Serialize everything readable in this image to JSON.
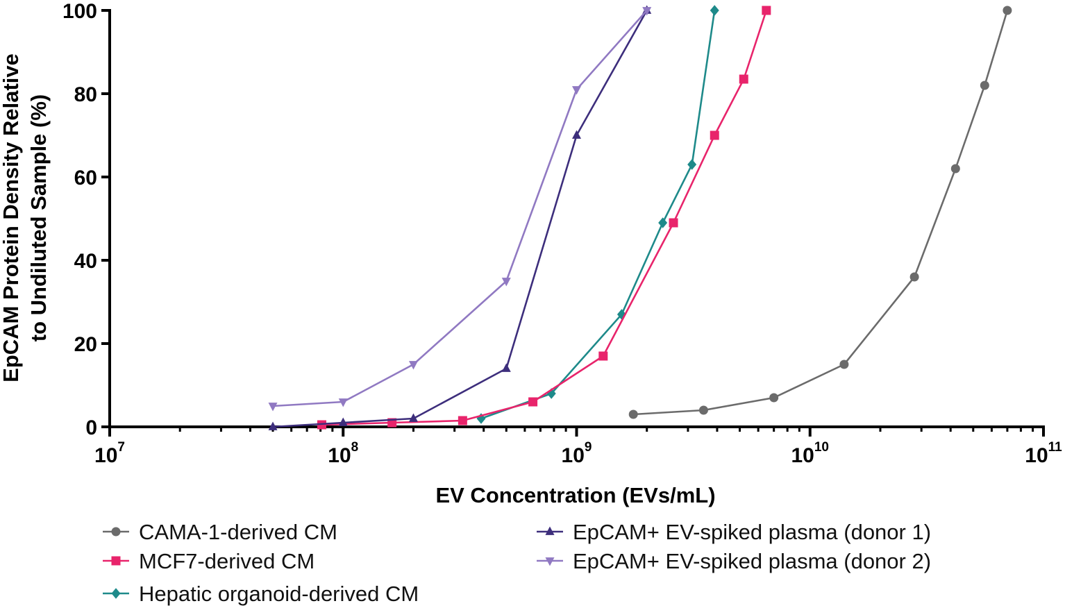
{
  "chart_data": {
    "type": "line",
    "title": "",
    "xlabel": "EV Concentration (EVs/mL)",
    "ylabel_lines": [
      "EpCAM Protein Density Relative",
      "to Undiluted Sample (%)"
    ],
    "x_scale": "log",
    "xlim": [
      10000000,
      100000000000
    ],
    "ylim": [
      0,
      100
    ],
    "x_ticks": [
      {
        "value": 10000000,
        "base": "10",
        "exp": "7"
      },
      {
        "value": 100000000,
        "base": "10",
        "exp": "8"
      },
      {
        "value": 1000000000,
        "base": "10",
        "exp": "9"
      },
      {
        "value": 10000000000,
        "base": "10",
        "exp": "10"
      },
      {
        "value": 100000000000,
        "base": "10",
        "exp": "11"
      }
    ],
    "y_ticks": [
      0,
      20,
      40,
      60,
      80,
      100
    ],
    "y_tick_labels": [
      "0",
      "20",
      "40",
      "60",
      "80",
      "100"
    ],
    "grid": false,
    "legend_position": "bottom",
    "series": [
      {
        "name": "CAMA-1-derived CM",
        "color": "#6b6b6b",
        "marker": "circle",
        "x": [
          1750000000,
          3500000000,
          7000000000,
          14000000000,
          28000000000,
          42000000000,
          56000000000,
          70000000000
        ],
        "y": [
          3,
          4,
          7,
          15,
          36,
          62,
          82,
          100
        ]
      },
      {
        "name": "MCF7-derived CM",
        "color": "#e8246b",
        "marker": "square",
        "x": [
          81000000,
          162000000,
          325000000,
          650000000,
          1300000000,
          2600000000,
          3900000000,
          5200000000,
          6500000000
        ],
        "y": [
          0.5,
          1,
          1.5,
          6,
          17,
          49,
          70,
          83.5,
          100
        ],
        "legend_row": 1
      },
      {
        "name": "Hepatic organoid-derived CM",
        "color": "#1e8a8a",
        "marker": "diamond",
        "x": [
          390000000,
          780000000,
          1560000000,
          2340000000,
          3120000000,
          3900000000
        ],
        "y": [
          2,
          8,
          27,
          49,
          63,
          100
        ]
      },
      {
        "name": "EpCAM+ EV-spiked plasma (donor 1)",
        "color": "#3d2e7c",
        "marker": "triangle-up",
        "x": [
          50000000,
          100000000,
          200000000,
          500000000,
          1000000000,
          2000000000
        ],
        "y": [
          0,
          1,
          2,
          14,
          70,
          100
        ]
      },
      {
        "name": "EpCAM+ EV-spiked plasma (donor 2)",
        "color": "#9079c2",
        "marker": "triangle-down",
        "x": [
          50000000,
          100000000,
          200000000,
          500000000,
          1000000000,
          2000000000
        ],
        "y": [
          5,
          6,
          15,
          35,
          81,
          100
        ]
      }
    ]
  }
}
